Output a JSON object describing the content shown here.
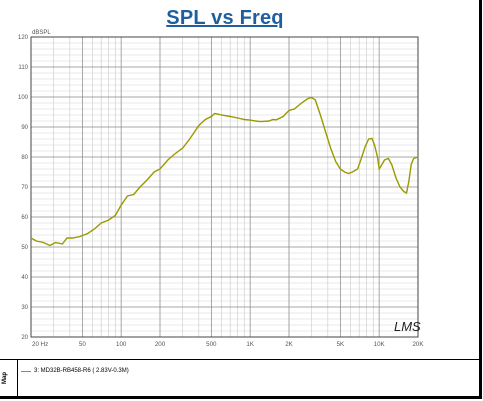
{
  "chart_data": {
    "type": "line",
    "title": "SPL vs Freq",
    "ylabel": "dBSPL",
    "xlabel": "",
    "xscale": "log",
    "xlim": [
      20,
      20000
    ],
    "ylim": [
      20,
      120
    ],
    "yticks": [
      20,
      30,
      40,
      50,
      60,
      70,
      80,
      90,
      100,
      110,
      120
    ],
    "xticks": [
      {
        "v": 20,
        "label": "20 Hz"
      },
      {
        "v": 50,
        "label": "50"
      },
      {
        "v": 100,
        "label": "100"
      },
      {
        "v": 200,
        "label": "200"
      },
      {
        "v": 500,
        "label": "500"
      },
      {
        "v": 1000,
        "label": "1K"
      },
      {
        "v": 2000,
        "label": "2K"
      },
      {
        "v": 5000,
        "label": "5K"
      },
      {
        "v": 10000,
        "label": "10K"
      },
      {
        "v": 20000,
        "label": "20K"
      }
    ],
    "grid": true,
    "watermark": "LMS",
    "series": [
      {
        "name": "3: MD32B-RB458-R6 ( 2.83V-0.3M)",
        "color": "#999900",
        "points": [
          [
            20,
            53
          ],
          [
            22,
            52
          ],
          [
            25,
            51.5
          ],
          [
            28,
            50.5
          ],
          [
            31,
            51.5
          ],
          [
            35,
            51
          ],
          [
            38,
            53
          ],
          [
            42,
            53
          ],
          [
            48,
            53.5
          ],
          [
            55,
            54.5
          ],
          [
            62,
            56
          ],
          [
            70,
            58
          ],
          [
            80,
            59
          ],
          [
            90,
            60.5
          ],
          [
            100,
            64
          ],
          [
            112,
            67
          ],
          [
            125,
            67.5
          ],
          [
            140,
            70
          ],
          [
            160,
            72.5
          ],
          [
            180,
            75
          ],
          [
            200,
            76
          ],
          [
            230,
            79
          ],
          [
            260,
            81
          ],
          [
            300,
            83
          ],
          [
            340,
            86
          ],
          [
            400,
            90.5
          ],
          [
            450,
            92.5
          ],
          [
            500,
            93.5
          ],
          [
            530,
            94.5
          ],
          [
            560,
            94.3
          ],
          [
            600,
            94
          ],
          [
            700,
            93.5
          ],
          [
            800,
            93
          ],
          [
            900,
            92.5
          ],
          [
            1000,
            92.3
          ],
          [
            1100,
            92
          ],
          [
            1200,
            91.8
          ],
          [
            1400,
            92
          ],
          [
            1500,
            92.5
          ],
          [
            1600,
            92.4
          ],
          [
            1800,
            93.5
          ],
          [
            2000,
            95.5
          ],
          [
            2200,
            96
          ],
          [
            2500,
            98
          ],
          [
            2800,
            99.5
          ],
          [
            3000,
            99.8
          ],
          [
            3200,
            99
          ],
          [
            3500,
            94
          ],
          [
            3800,
            89
          ],
          [
            4200,
            83
          ],
          [
            4600,
            78.5
          ],
          [
            5000,
            76
          ],
          [
            5400,
            75
          ],
          [
            5800,
            74.5
          ],
          [
            6200,
            75
          ],
          [
            6800,
            76
          ],
          [
            7200,
            79
          ],
          [
            7800,
            83.5
          ],
          [
            8300,
            86
          ],
          [
            8800,
            86.2
          ],
          [
            9200,
            84
          ],
          [
            9700,
            80
          ],
          [
            10000,
            76
          ],
          [
            10500,
            77.5
          ],
          [
            11000,
            79
          ],
          [
            11800,
            79.5
          ],
          [
            12500,
            77.5
          ],
          [
            13500,
            73
          ],
          [
            14500,
            70
          ],
          [
            15500,
            68.5
          ],
          [
            16300,
            68
          ],
          [
            17000,
            72
          ],
          [
            17700,
            77.5
          ],
          [
            18500,
            79.5
          ],
          [
            20000,
            80
          ]
        ]
      }
    ]
  },
  "legend": {
    "side_label": "Map",
    "entry_label": "3: MD32B-RB458-R6 ( 2.83V-0.3M)"
  }
}
